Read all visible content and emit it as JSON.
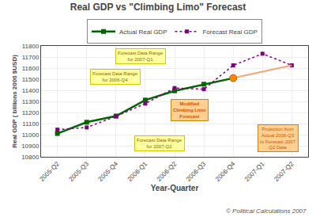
{
  "chart_data": {
    "type": "line",
    "title": "Real GDP vs \"Climbing Limo\" Forecast",
    "xlabel": "Year-Quarter",
    "ylabel": "Real GDP ( billions 2000 $USD)",
    "categories": [
      "2005-Q2",
      "2005-Q3",
      "2005-Q4",
      "2006-Q1",
      "2006-Q2",
      "2006-Q3",
      "2006-Q4",
      "2007-Q1",
      "2007-Q2"
    ],
    "series": [
      {
        "name": "Actual Real GDP",
        "color": "#006600",
        "marker": "square",
        "line_style": "solid",
        "values": [
          11010,
          11112,
          11168,
          11312,
          11395,
          11455,
          11510,
          null,
          null
        ]
      },
      {
        "name": "Forecast Real GDP",
        "color": "#800080",
        "marker": "square",
        "line_style": "dotted",
        "values": [
          11045,
          11065,
          11165,
          11280,
          11420,
          11410,
          11625,
          11730,
          11625
        ]
      }
    ],
    "ylim": [
      10800,
      11800
    ],
    "yticks": [
      10800,
      10900,
      11000,
      11100,
      11200,
      11300,
      11400,
      11500,
      11600,
      11700,
      11800
    ],
    "grid": true,
    "legend": "top",
    "annotations": [
      "Forecast Data Range\nfor 2007-Q1",
      "Forecast Data Range\nfor 2006-Q4",
      "Forecast Data Range\nfor 2007-Q2",
      "Modified\nClimbing Limo\nForecast",
      "Projection from\nActual 2006-Q3\nto Forecast 2007\nQ2 Data",
      "© Political Calculations 2007"
    ]
  }
}
